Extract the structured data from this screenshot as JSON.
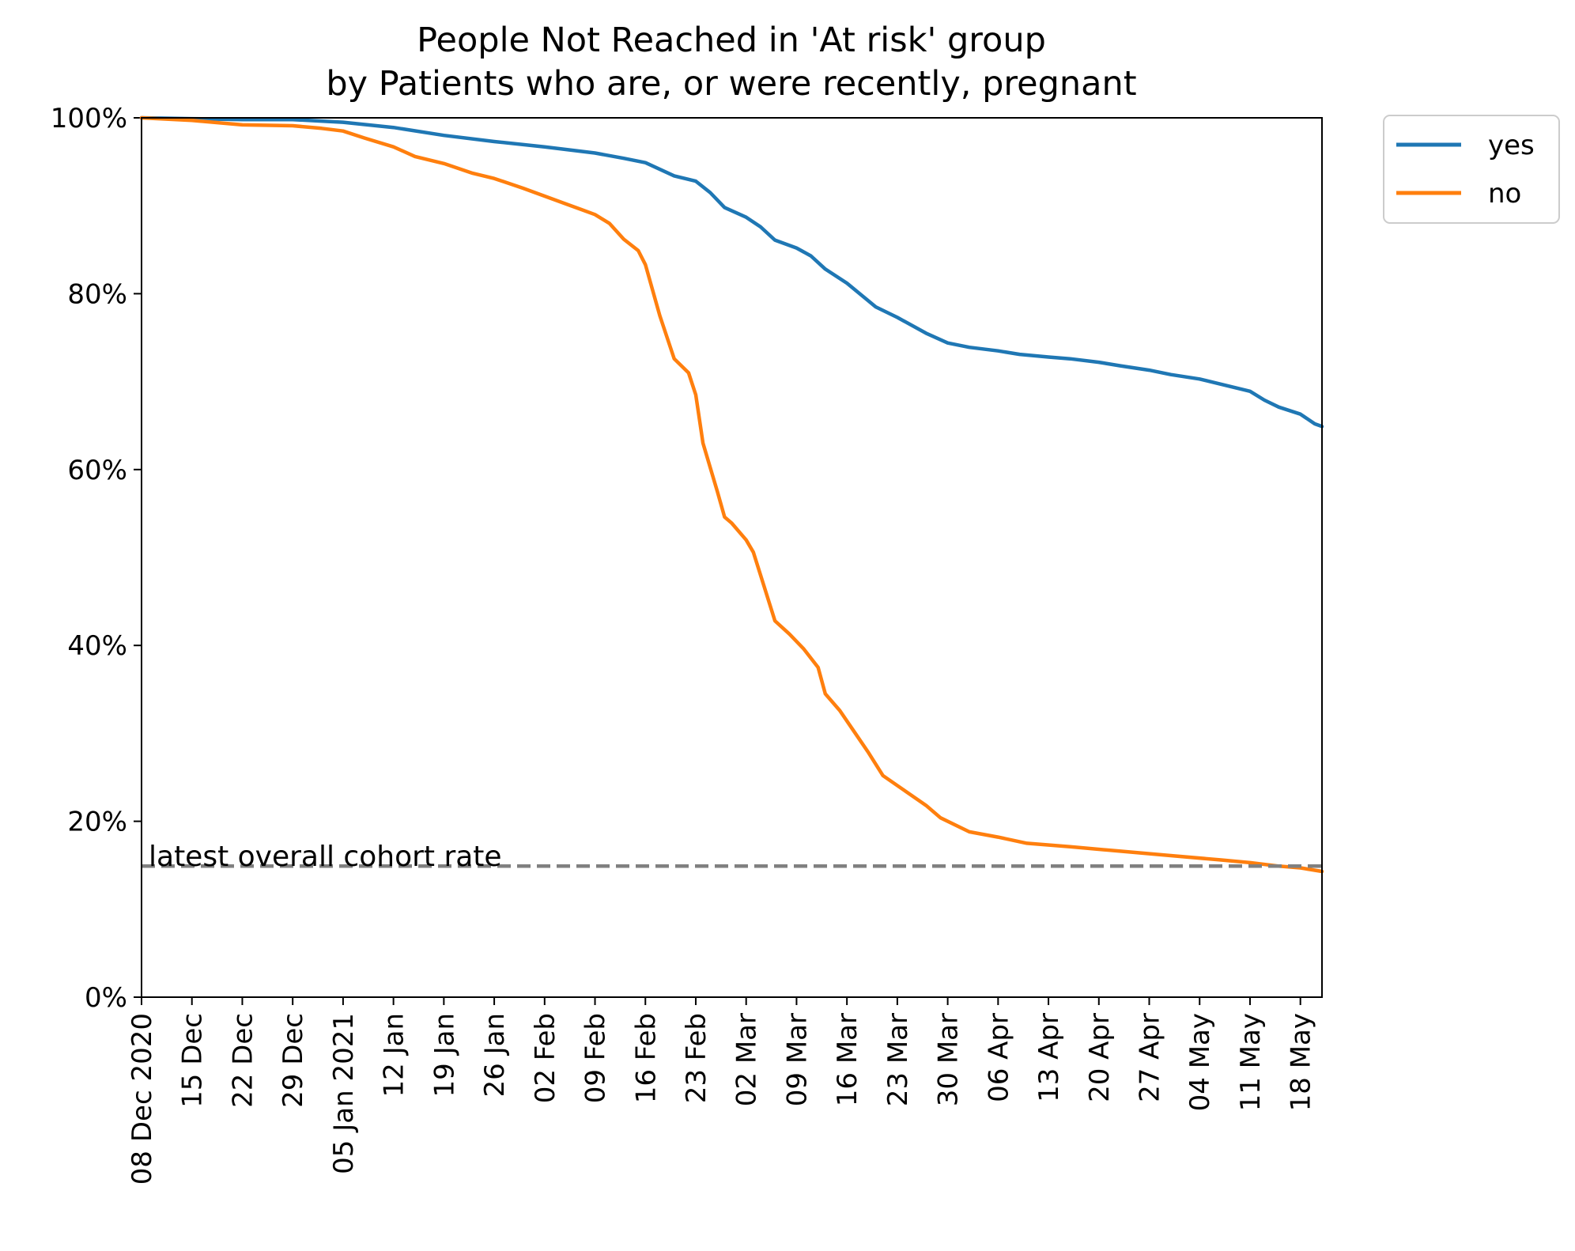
{
  "chart_data": {
    "type": "line",
    "title": [
      "People Not Reached in 'At risk' group",
      "by Patients who are, or were recently, pregnant"
    ],
    "x_start": "2020-12-08",
    "x_end": "2021-05-21",
    "ylim": [
      0,
      100
    ],
    "y_ticks": [
      0,
      20,
      40,
      60,
      80,
      100
    ],
    "y_tick_labels": [
      "0%",
      "20%",
      "40%",
      "60%",
      "80%",
      "100%"
    ],
    "x_ticks": [
      {
        "date": "2020-12-08",
        "label": "08 Dec 2020"
      },
      {
        "date": "2020-12-15",
        "label": "15 Dec"
      },
      {
        "date": "2020-12-22",
        "label": "22 Dec"
      },
      {
        "date": "2020-12-29",
        "label": "29 Dec"
      },
      {
        "date": "2021-01-05",
        "label": "05 Jan 2021"
      },
      {
        "date": "2021-01-12",
        "label": "12 Jan"
      },
      {
        "date": "2021-01-19",
        "label": "19 Jan"
      },
      {
        "date": "2021-01-26",
        "label": "26 Jan"
      },
      {
        "date": "2021-02-02",
        "label": "02 Feb"
      },
      {
        "date": "2021-02-09",
        "label": "09 Feb"
      },
      {
        "date": "2021-02-16",
        "label": "16 Feb"
      },
      {
        "date": "2021-02-23",
        "label": "23 Feb"
      },
      {
        "date": "2021-03-02",
        "label": "02 Mar"
      },
      {
        "date": "2021-03-09",
        "label": "09 Mar"
      },
      {
        "date": "2021-03-16",
        "label": "16 Mar"
      },
      {
        "date": "2021-03-23",
        "label": "23 Mar"
      },
      {
        "date": "2021-03-30",
        "label": "30 Mar"
      },
      {
        "date": "2021-04-06",
        "label": "06 Apr"
      },
      {
        "date": "2021-04-13",
        "label": "13 Apr"
      },
      {
        "date": "2021-04-20",
        "label": "20 Apr"
      },
      {
        "date": "2021-04-27",
        "label": "27 Apr"
      },
      {
        "date": "2021-05-04",
        "label": "04 May"
      },
      {
        "date": "2021-05-11",
        "label": "11 May"
      },
      {
        "date": "2021-05-18",
        "label": "18 May"
      }
    ],
    "series": [
      {
        "name": "yes",
        "color": "#1f77b4",
        "points": [
          [
            "2020-12-08",
            100
          ],
          [
            "2020-12-15",
            99.9
          ],
          [
            "2020-12-22",
            99.8
          ],
          [
            "2020-12-29",
            99.8
          ],
          [
            "2021-01-05",
            99.5
          ],
          [
            "2021-01-12",
            98.9
          ],
          [
            "2021-01-19",
            98.0
          ],
          [
            "2021-01-26",
            97.3
          ],
          [
            "2021-02-02",
            96.7
          ],
          [
            "2021-02-09",
            96.0
          ],
          [
            "2021-02-13",
            95.4
          ],
          [
            "2021-02-16",
            94.9
          ],
          [
            "2021-02-20",
            93.4
          ],
          [
            "2021-02-23",
            92.8
          ],
          [
            "2021-02-25",
            91.5
          ],
          [
            "2021-02-27",
            89.8
          ],
          [
            "2021-03-02",
            88.7
          ],
          [
            "2021-03-04",
            87.6
          ],
          [
            "2021-03-06",
            86.1
          ],
          [
            "2021-03-09",
            85.2
          ],
          [
            "2021-03-11",
            84.3
          ],
          [
            "2021-03-13",
            82.8
          ],
          [
            "2021-03-16",
            81.2
          ],
          [
            "2021-03-20",
            78.5
          ],
          [
            "2021-03-23",
            77.3
          ],
          [
            "2021-03-27",
            75.5
          ],
          [
            "2021-03-30",
            74.4
          ],
          [
            "2021-04-02",
            73.9
          ],
          [
            "2021-04-06",
            73.5
          ],
          [
            "2021-04-09",
            73.1
          ],
          [
            "2021-04-13",
            72.8
          ],
          [
            "2021-04-16",
            72.6
          ],
          [
            "2021-04-20",
            72.2
          ],
          [
            "2021-04-23",
            71.8
          ],
          [
            "2021-04-27",
            71.3
          ],
          [
            "2021-04-30",
            70.8
          ],
          [
            "2021-05-04",
            70.3
          ],
          [
            "2021-05-07",
            69.7
          ],
          [
            "2021-05-11",
            68.9
          ],
          [
            "2021-05-13",
            67.9
          ],
          [
            "2021-05-15",
            67.1
          ],
          [
            "2021-05-18",
            66.3
          ],
          [
            "2021-05-20",
            65.2
          ],
          [
            "2021-05-21",
            64.9
          ]
        ]
      },
      {
        "name": "no",
        "color": "#ff7f0e",
        "points": [
          [
            "2020-12-08",
            100
          ],
          [
            "2020-12-15",
            99.7
          ],
          [
            "2020-12-22",
            99.2
          ],
          [
            "2020-12-29",
            99.1
          ],
          [
            "2021-01-02",
            98.8
          ],
          [
            "2021-01-05",
            98.5
          ],
          [
            "2021-01-08",
            97.7
          ],
          [
            "2021-01-12",
            96.7
          ],
          [
            "2021-01-15",
            95.6
          ],
          [
            "2021-01-19",
            94.8
          ],
          [
            "2021-01-23",
            93.7
          ],
          [
            "2021-01-26",
            93.1
          ],
          [
            "2021-01-30",
            92.0
          ],
          [
            "2021-02-02",
            91.1
          ],
          [
            "2021-02-05",
            90.2
          ],
          [
            "2021-02-07",
            89.6
          ],
          [
            "2021-02-09",
            89.0
          ],
          [
            "2021-02-11",
            88.0
          ],
          [
            "2021-02-13",
            86.2
          ],
          [
            "2021-02-15",
            84.9
          ],
          [
            "2021-02-16",
            83.3
          ],
          [
            "2021-02-18",
            77.5
          ],
          [
            "2021-02-20",
            72.6
          ],
          [
            "2021-02-22",
            71.0
          ],
          [
            "2021-02-23",
            68.5
          ],
          [
            "2021-02-24",
            63.0
          ],
          [
            "2021-02-26",
            57.5
          ],
          [
            "2021-02-27",
            54.6
          ],
          [
            "2021-02-28",
            53.9
          ],
          [
            "2021-03-02",
            52.0
          ],
          [
            "2021-03-03",
            50.6
          ],
          [
            "2021-03-04",
            48.0
          ],
          [
            "2021-03-06",
            42.8
          ],
          [
            "2021-03-08",
            41.3
          ],
          [
            "2021-03-10",
            39.6
          ],
          [
            "2021-03-12",
            37.5
          ],
          [
            "2021-03-13",
            34.5
          ],
          [
            "2021-03-15",
            32.6
          ],
          [
            "2021-03-17",
            30.2
          ],
          [
            "2021-03-19",
            27.8
          ],
          [
            "2021-03-21",
            25.2
          ],
          [
            "2021-03-24",
            23.5
          ],
          [
            "2021-03-27",
            21.8
          ],
          [
            "2021-03-29",
            20.4
          ],
          [
            "2021-04-02",
            18.8
          ],
          [
            "2021-04-06",
            18.2
          ],
          [
            "2021-04-10",
            17.5
          ],
          [
            "2021-04-16",
            17.1
          ],
          [
            "2021-04-23",
            16.6
          ],
          [
            "2021-04-30",
            16.1
          ],
          [
            "2021-05-07",
            15.6
          ],
          [
            "2021-05-11",
            15.3
          ],
          [
            "2021-05-15",
            14.9
          ],
          [
            "2021-05-18",
            14.7
          ],
          [
            "2021-05-21",
            14.3
          ]
        ]
      }
    ],
    "reference_line": {
      "value": 14.9,
      "label": "latest overall cohort rate",
      "color": "#808080",
      "style": "dashed"
    },
    "legend_position": "outside-top-right",
    "grid": false
  }
}
